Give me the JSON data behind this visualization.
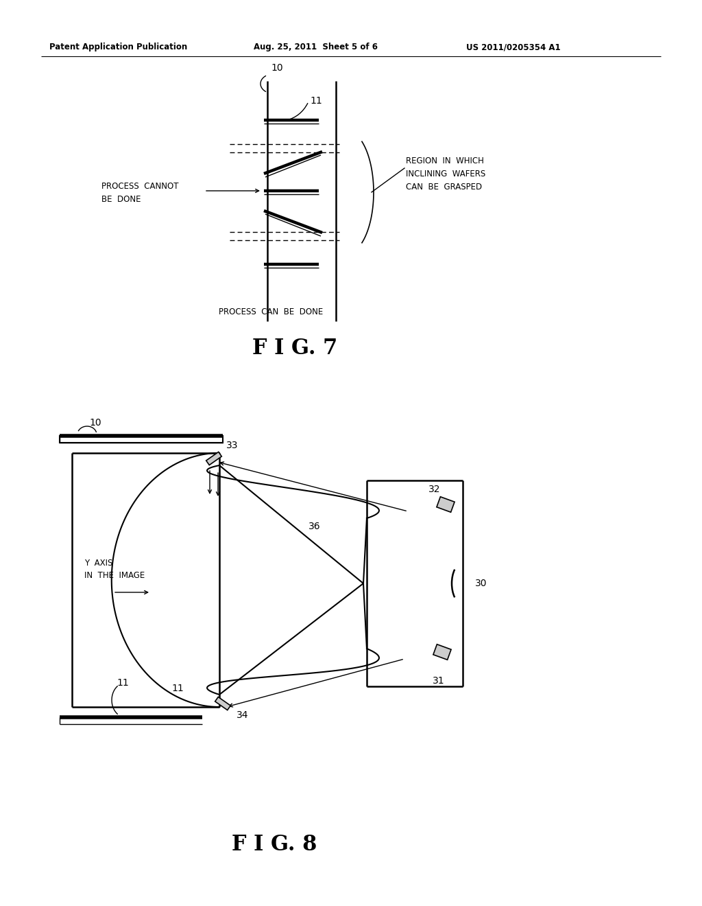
{
  "background_color": "#ffffff",
  "header_left": "Patent Application Publication",
  "header_center": "Aug. 25, 2011  Sheet 5 of 6",
  "header_right": "US 2011/0205354 A1",
  "fig7_title": "F I G. 7",
  "fig8_title": "F I G. 8",
  "fig7_label_10": "10",
  "fig7_label_11": "11",
  "fig7_label_process_cannot": "PROCESS  CANNOT\nBE  DONE",
  "fig7_label_process_can": "PROCESS  CAN  BE  DONE",
  "fig7_label_region": "REGION  IN  WHICH\nINCLINING  WAFERS\nCAN  BE  GRASPED",
  "fig8_label_10": "10",
  "fig8_label_11": "11",
  "fig8_label_30": "30",
  "fig8_label_31": "31",
  "fig8_label_32": "32",
  "fig8_label_33": "33",
  "fig8_label_34": "34",
  "fig8_label_36": "36",
  "fig8_label_yaxis": "Y  AXIS\nIN  THE  IMAGE"
}
